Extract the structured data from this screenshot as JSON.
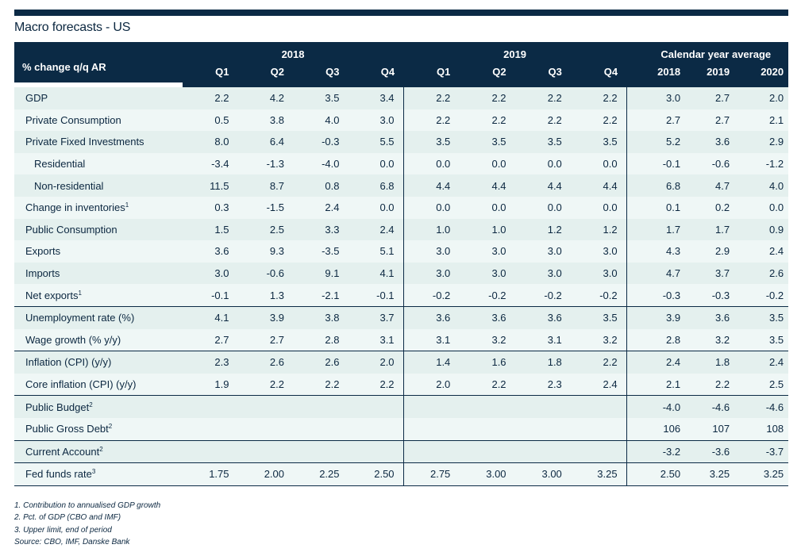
{
  "title": "Macro forecasts - US",
  "colors": {
    "header_bg": "#0b2a45",
    "row_a": "#e4f0ee",
    "row_b": "#eff7f6",
    "text": "#0b2740"
  },
  "header": {
    "unit_label": "% change q/q AR",
    "groups": [
      "2018",
      "2019",
      "Calendar year average"
    ],
    "columns": [
      "Q1",
      "Q2",
      "Q3",
      "Q4",
      "Q1",
      "Q2",
      "Q3",
      "Q4",
      "2018",
      "2019",
      "2020"
    ]
  },
  "row_groups": [
    [
      {
        "label": "GDP",
        "values": [
          "2.2",
          "4.2",
          "3.5",
          "3.4",
          "2.2",
          "2.2",
          "2.2",
          "2.2",
          "3.0",
          "2.7",
          "2.0"
        ]
      },
      {
        "label": "Private Consumption",
        "values": [
          "0.5",
          "3.8",
          "4.0",
          "3.0",
          "2.2",
          "2.2",
          "2.2",
          "2.2",
          "2.7",
          "2.7",
          "2.1"
        ]
      },
      {
        "label": "Private Fixed Investments",
        "values": [
          "8.0",
          "6.4",
          "-0.3",
          "5.5",
          "3.5",
          "3.5",
          "3.5",
          "3.5",
          "5.2",
          "3.6",
          "2.9"
        ]
      },
      {
        "label": "Residential",
        "indent": true,
        "values": [
          "-3.4",
          "-1.3",
          "-4.0",
          "0.0",
          "0.0",
          "0.0",
          "0.0",
          "0.0",
          "-0.1",
          "-0.6",
          "-1.2"
        ]
      },
      {
        "label": "Non-residential",
        "indent": true,
        "values": [
          "11.5",
          "8.7",
          "0.8",
          "6.8",
          "4.4",
          "4.4",
          "4.4",
          "4.4",
          "6.8",
          "4.7",
          "4.0"
        ]
      },
      {
        "label": "Change in inventories",
        "sup": "1",
        "values": [
          "0.3",
          "-1.5",
          "2.4",
          "0.0",
          "0.0",
          "0.0",
          "0.0",
          "0.0",
          "0.1",
          "0.2",
          "0.0"
        ]
      },
      {
        "label": "Public Consumption",
        "values": [
          "1.5",
          "2.5",
          "3.3",
          "2.4",
          "1.0",
          "1.0",
          "1.2",
          "1.2",
          "1.7",
          "1.7",
          "0.9"
        ]
      },
      {
        "label": "Exports",
        "values": [
          "3.6",
          "9.3",
          "-3.5",
          "5.1",
          "3.0",
          "3.0",
          "3.0",
          "3.0",
          "4.3",
          "2.9",
          "2.4"
        ]
      },
      {
        "label": "Imports",
        "values": [
          "3.0",
          "-0.6",
          "9.1",
          "4.1",
          "3.0",
          "3.0",
          "3.0",
          "3.0",
          "4.7",
          "3.7",
          "2.6"
        ]
      },
      {
        "label": "Net exports",
        "sup": "1",
        "values": [
          "-0.1",
          "1.3",
          "-2.1",
          "-0.1",
          "-0.2",
          "-0.2",
          "-0.2",
          "-0.2",
          "-0.3",
          "-0.3",
          "-0.2"
        ]
      }
    ],
    [
      {
        "label": "Unemployment rate (%)",
        "values": [
          "4.1",
          "3.9",
          "3.8",
          "3.7",
          "3.6",
          "3.6",
          "3.6",
          "3.5",
          "3.9",
          "3.6",
          "3.5"
        ]
      },
      {
        "label": "Wage growth (% y/y)",
        "values": [
          "2.7",
          "2.7",
          "2.8",
          "3.1",
          "3.1",
          "3.2",
          "3.1",
          "3.2",
          "2.8",
          "3.2",
          "3.5"
        ]
      }
    ],
    [
      {
        "label": "Inflation (CPI) (y/y)",
        "values": [
          "2.3",
          "2.6",
          "2.6",
          "2.0",
          "1.4",
          "1.6",
          "1.8",
          "2.2",
          "2.4",
          "1.8",
          "2.4"
        ]
      },
      {
        "label": "Core inflation (CPI) (y/y)",
        "values": [
          "1.9",
          "2.2",
          "2.2",
          "2.2",
          "2.0",
          "2.2",
          "2.3",
          "2.4",
          "2.1",
          "2.2",
          "2.5"
        ]
      }
    ],
    [
      {
        "label": "Public Budget",
        "sup": "2",
        "values": [
          "",
          "",
          "",
          "",
          "",
          "",
          "",
          "",
          "-4.0",
          "-4.6",
          "-4.6"
        ]
      },
      {
        "label": "Public Gross Debt",
        "sup": "2",
        "values": [
          "",
          "",
          "",
          "",
          "",
          "",
          "",
          "",
          "106",
          "107",
          "108"
        ]
      }
    ],
    [
      {
        "label": "Current Account",
        "sup": "2",
        "values": [
          "",
          "",
          "",
          "",
          "",
          "",
          "",
          "",
          "-3.2",
          "-3.6",
          "-3.7"
        ]
      }
    ],
    [
      {
        "label": "Fed funds rate",
        "sup": "3",
        "values": [
          "1.75",
          "2.00",
          "2.25",
          "2.50",
          "2.75",
          "3.00",
          "3.00",
          "3.25",
          "2.50",
          "3.25",
          "3.25"
        ]
      }
    ]
  ],
  "footnotes": [
    "1. Contribution to annualised GDP growth",
    "2. Pct. of GDP (CBO and IMF)",
    "3. Upper limit, end of period",
    "Source: CBO, IMF, Danske Bank"
  ]
}
